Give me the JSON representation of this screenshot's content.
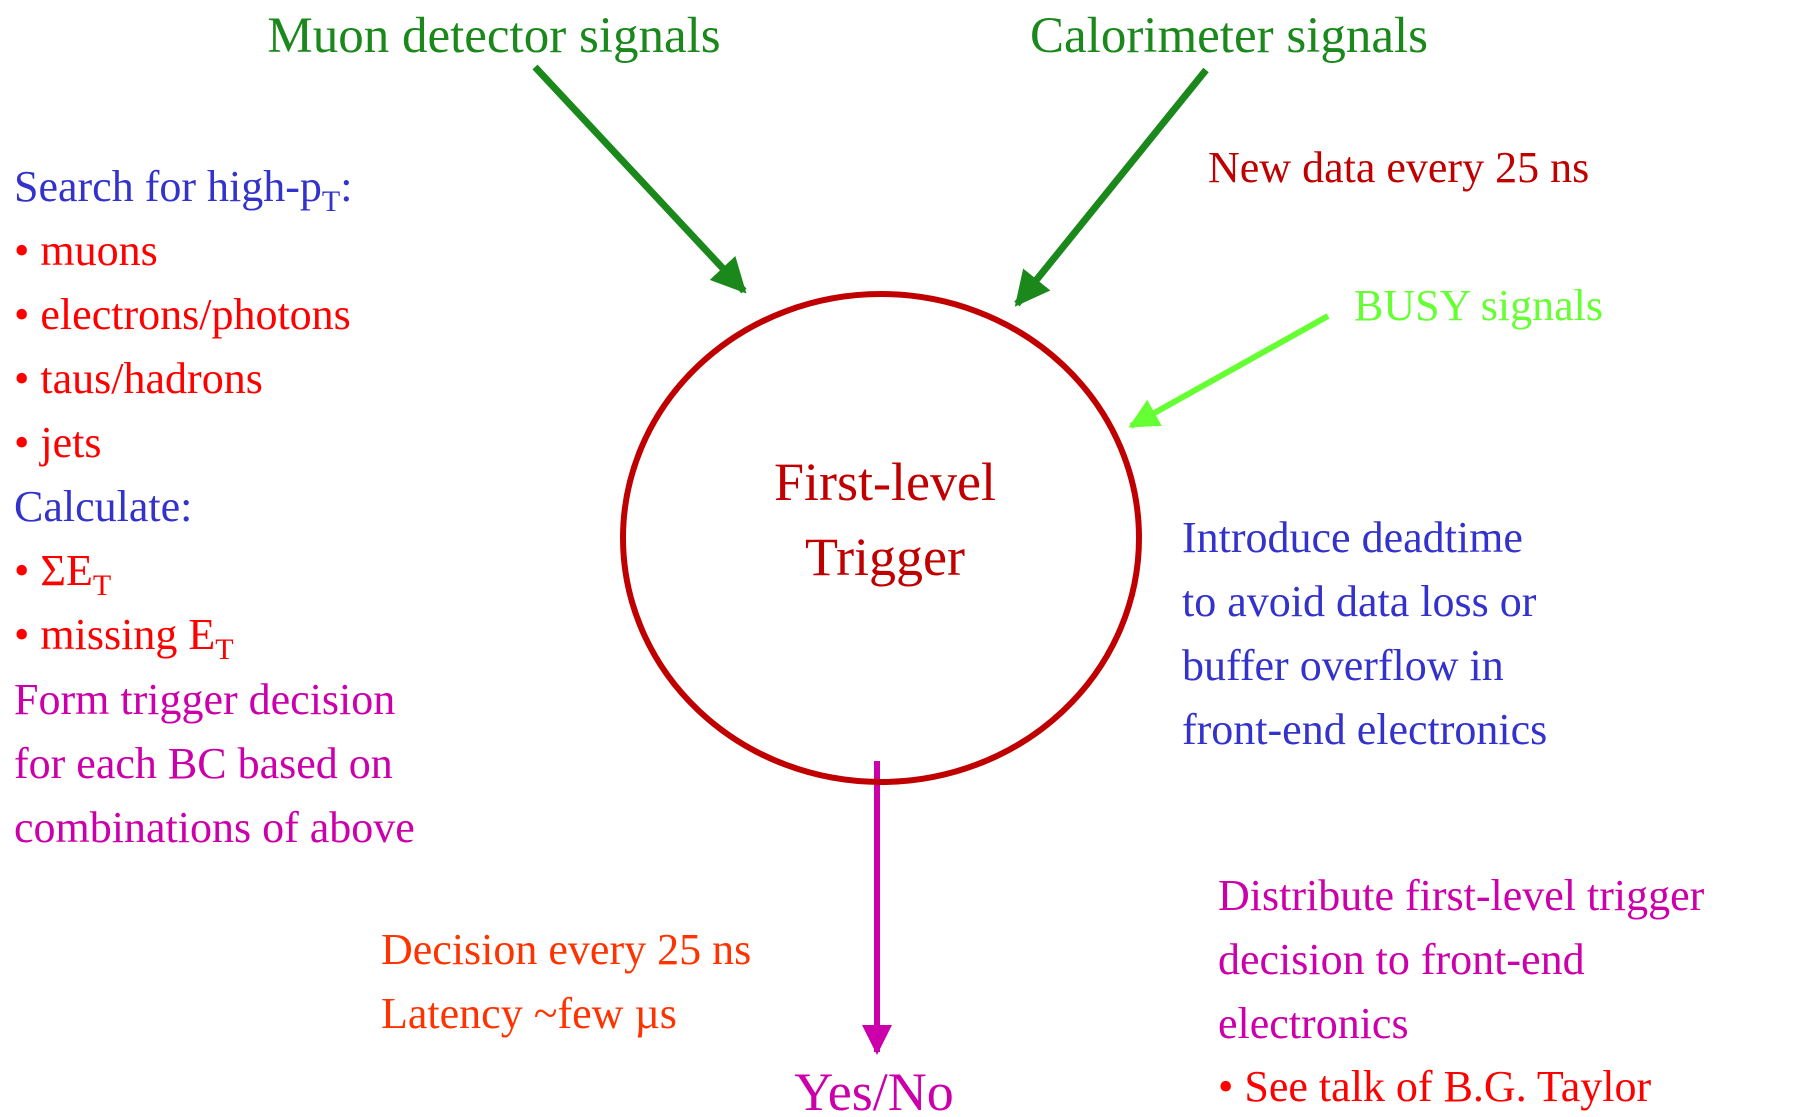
{
  "inputs": {
    "muon": "Muon detector signals",
    "calorimeter": "Calorimeter signals",
    "busy": "BUSY signals"
  },
  "rate_note": "New data every 25 ns",
  "center": {
    "line1": "First-level",
    "line2": "Trigger"
  },
  "bullet": "•",
  "search": {
    "heading": [
      "Search for high-p",
      "T",
      ":"
    ],
    "items": [
      "muons",
      "electrons/photons",
      "taus/hadrons",
      "jets"
    ]
  },
  "calculate": {
    "heading": "Calculate:",
    "items": [
      [
        "ΣE",
        "T"
      ],
      [
        "missing E",
        "T"
      ]
    ]
  },
  "form": [
    "Form trigger decision",
    "for each BC based on",
    "combinations of above"
  ],
  "deadtime": [
    "Introduce deadtime",
    "to avoid data loss or",
    "buffer overflow in",
    "front-end electronics"
  ],
  "decision": [
    "Decision every 25 ns",
    "Latency ~few µs"
  ],
  "output": "Yes/No",
  "distribute": {
    "lines": [
      "Distribute first-level trigger",
      "decision to front-end",
      "electronics"
    ],
    "bullet_item": "See talk of B.G. Taylor"
  }
}
